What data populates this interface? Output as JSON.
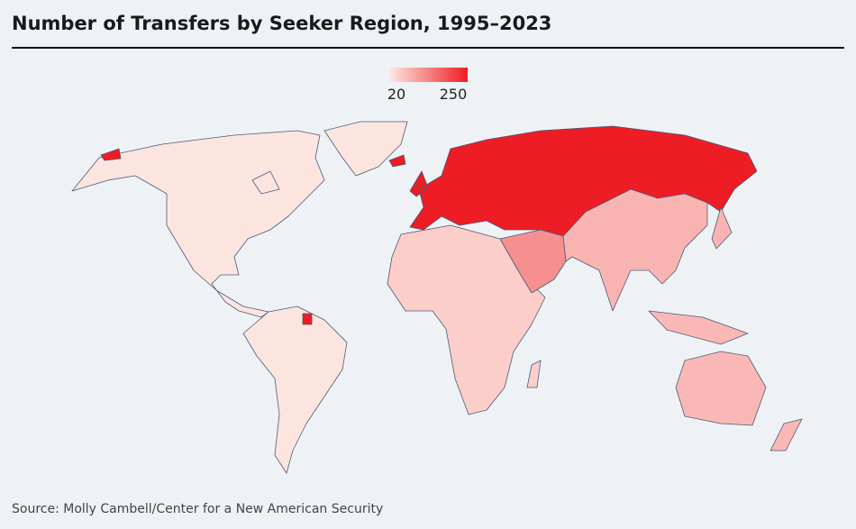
{
  "chart_data": {
    "type": "choropleth",
    "title": "Number of Transfers by Seeker Region, 1995–2023",
    "source": "Source: Molly Cambell/Center for a New American Security",
    "colorscale": [
      "#fde9e3",
      "#ee1c25"
    ],
    "clim": [
      20,
      250
    ],
    "cticks": [
      20,
      250
    ],
    "values": [
      25,
      25,
      250,
      50,
      120,
      80,
      75
    ]
  }
}
